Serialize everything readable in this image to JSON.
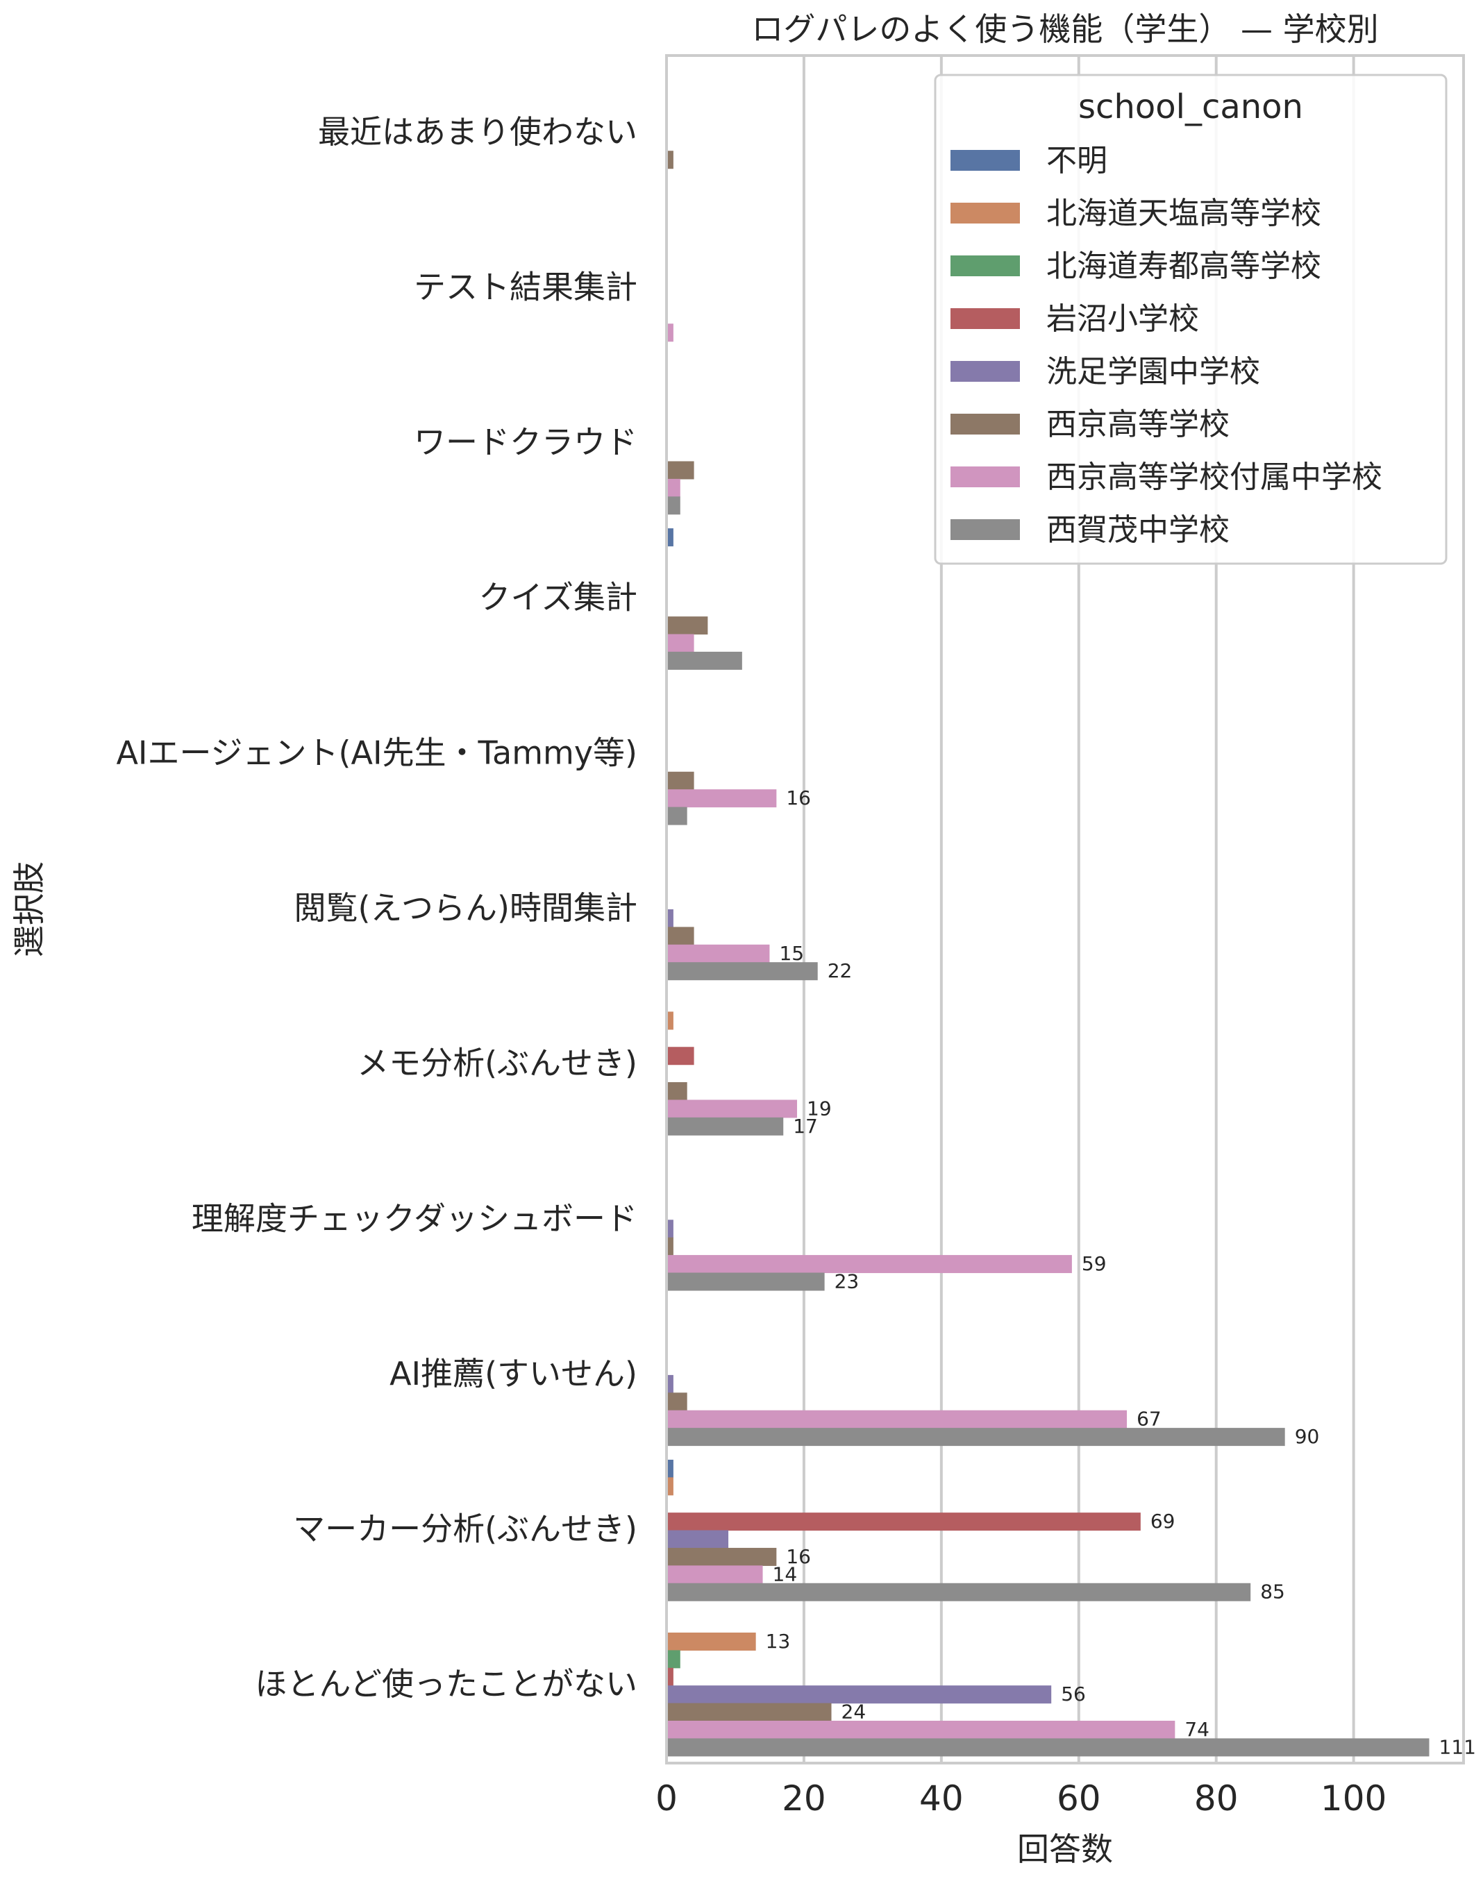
{
  "chart_data": {
    "type": "bar",
    "orientation": "horizontal",
    "title": "ログパレのよく使う機能（学生） — 学校別",
    "xlabel": "回答数",
    "ylabel": "選択肢",
    "xlim": [
      0,
      116
    ],
    "xticks": [
      0,
      20,
      40,
      60,
      80,
      100
    ],
    "grid": "vertical",
    "legend_title": "school_canon",
    "legend_position": "top-right",
    "label_threshold": 13,
    "categories": [
      "最近はあまり使わない",
      "テスト結果集計",
      "ワードクラウド",
      "クイズ集計",
      "AIエージェント(AI先生・Tammy等)",
      "閲覧(えつらん)時間集計",
      "メモ分析(ぶんせき)",
      "理解度チェックダッシュボード",
      "AI推薦(すいせん)",
      "マーカー分析(ぶんせき)",
      "ほとんど使ったことがない"
    ],
    "series": [
      {
        "name": "不明",
        "color": "#5875a4",
        "values": [
          0,
          0,
          0,
          1,
          0,
          0,
          0,
          0,
          0,
          1,
          0
        ]
      },
      {
        "name": "北海道天塩高等学校",
        "color": "#cc8963",
        "values": [
          0,
          0,
          0,
          0,
          0,
          0,
          1,
          0,
          0,
          1,
          13
        ]
      },
      {
        "name": "北海道寿都高等学校",
        "color": "#5f9e6e",
        "values": [
          0,
          0,
          0,
          0,
          0,
          0,
          0,
          0,
          0,
          0,
          2
        ]
      },
      {
        "name": "岩沼小学校",
        "color": "#b55d60",
        "values": [
          0,
          0,
          0,
          0,
          0,
          0,
          4,
          0,
          0,
          69,
          1
        ]
      },
      {
        "name": "洗足学園中学校",
        "color": "#857aab",
        "values": [
          0,
          0,
          0,
          0,
          0,
          1,
          0,
          1,
          1,
          9,
          56
        ]
      },
      {
        "name": "西京高等学校",
        "color": "#8d7866",
        "values": [
          1,
          0,
          4,
          6,
          4,
          4,
          3,
          1,
          3,
          16,
          24
        ]
      },
      {
        "name": "西京高等学校付属中学校",
        "color": "#d095bf",
        "values": [
          0,
          1,
          2,
          4,
          16,
          15,
          19,
          59,
          67,
          14,
          74
        ]
      },
      {
        "name": "西賀茂中学校",
        "color": "#8c8c8c",
        "values": [
          0,
          0,
          2,
          11,
          3,
          22,
          17,
          23,
          90,
          85,
          111
        ]
      }
    ]
  }
}
